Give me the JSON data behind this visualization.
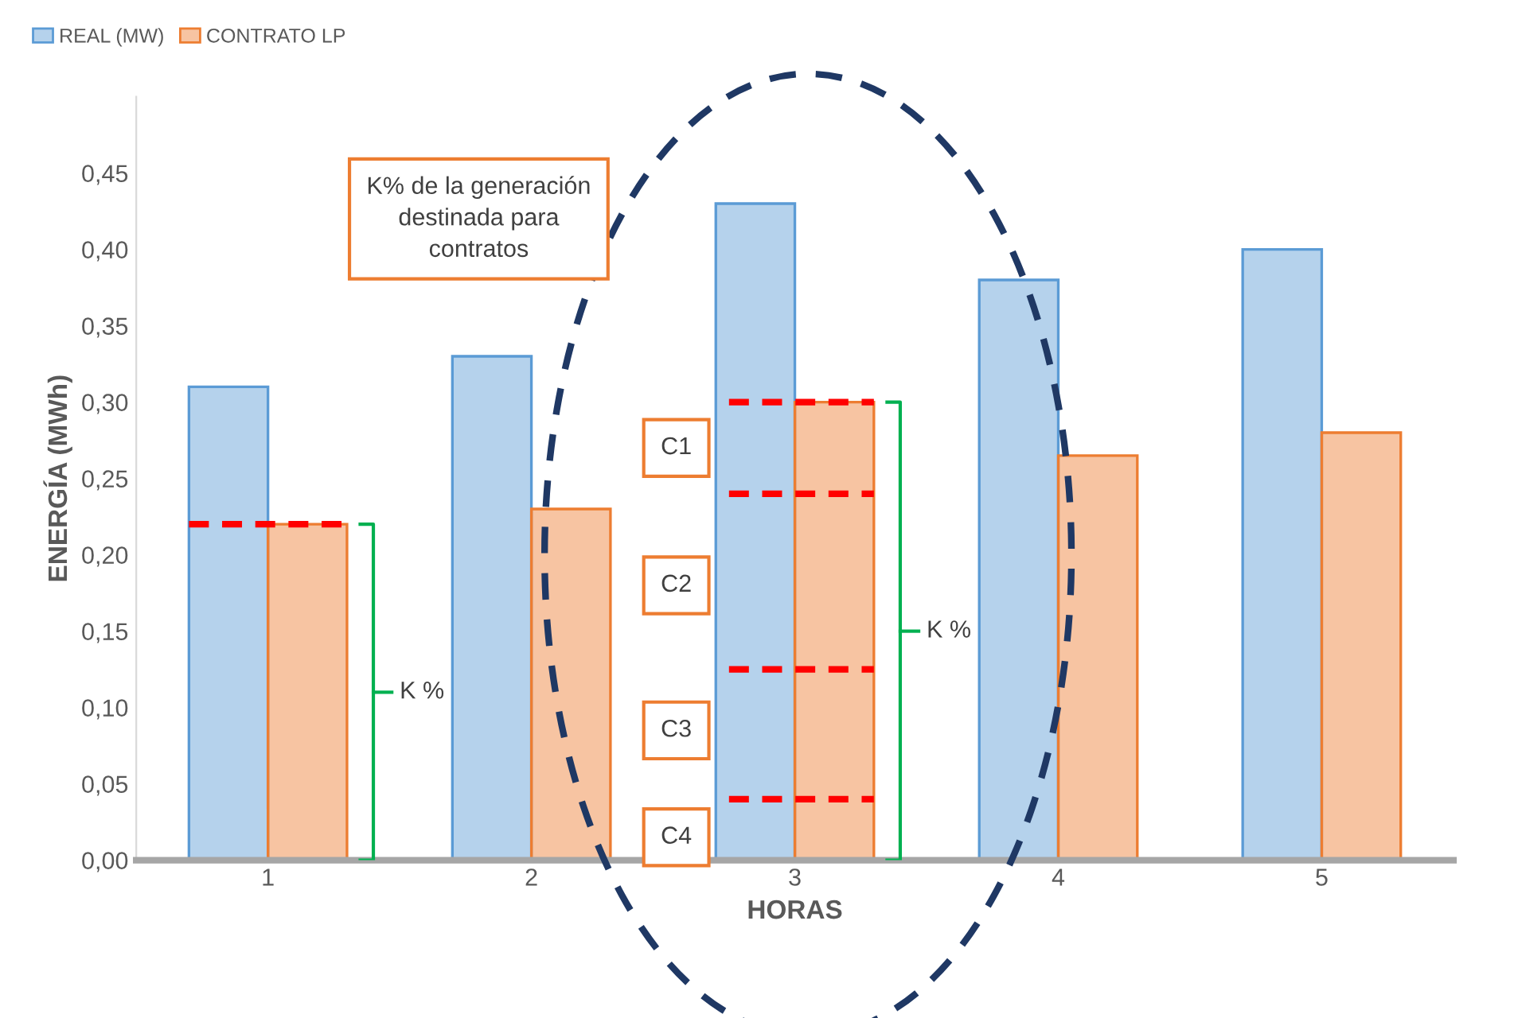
{
  "chart_data": {
    "type": "bar",
    "xlabel": "HORAS",
    "ylabel": "ENERGÍA (MWh)",
    "categories": [
      "1",
      "2",
      "3",
      "4",
      "5"
    ],
    "series": [
      {
        "name": "REAL (MW)",
        "color": "#5b9bd5",
        "values": [
          0.31,
          0.33,
          0.43,
          0.38,
          0.4
        ]
      },
      {
        "name": "CONTRATO LP",
        "color": "#ed7d31",
        "values": [
          0.22,
          0.23,
          0.3,
          0.265,
          0.28
        ]
      }
    ],
    "ylim": [
      0,
      0.5
    ],
    "yticks": [
      {
        "value": 0,
        "label": "0,00"
      },
      {
        "value": 0.05,
        "label": "0,05"
      },
      {
        "value": 0.1,
        "label": "0,10"
      },
      {
        "value": 0.15,
        "label": "0,15"
      },
      {
        "value": 0.2,
        "label": "0,20"
      },
      {
        "value": 0.25,
        "label": "0,25"
      },
      {
        "value": 0.3,
        "label": "0,30"
      },
      {
        "value": 0.35,
        "label": "0,35"
      },
      {
        "value": 0.4,
        "label": "0,40"
      },
      {
        "value": 0.45,
        "label": "0,45"
      }
    ],
    "grid": false,
    "legend": "top left",
    "annotations": [
      "K% de la generación\ndestinada para\ncontratos",
      "K %",
      "K %",
      "C1",
      "C2",
      "C3",
      "C4"
    ]
  }
}
